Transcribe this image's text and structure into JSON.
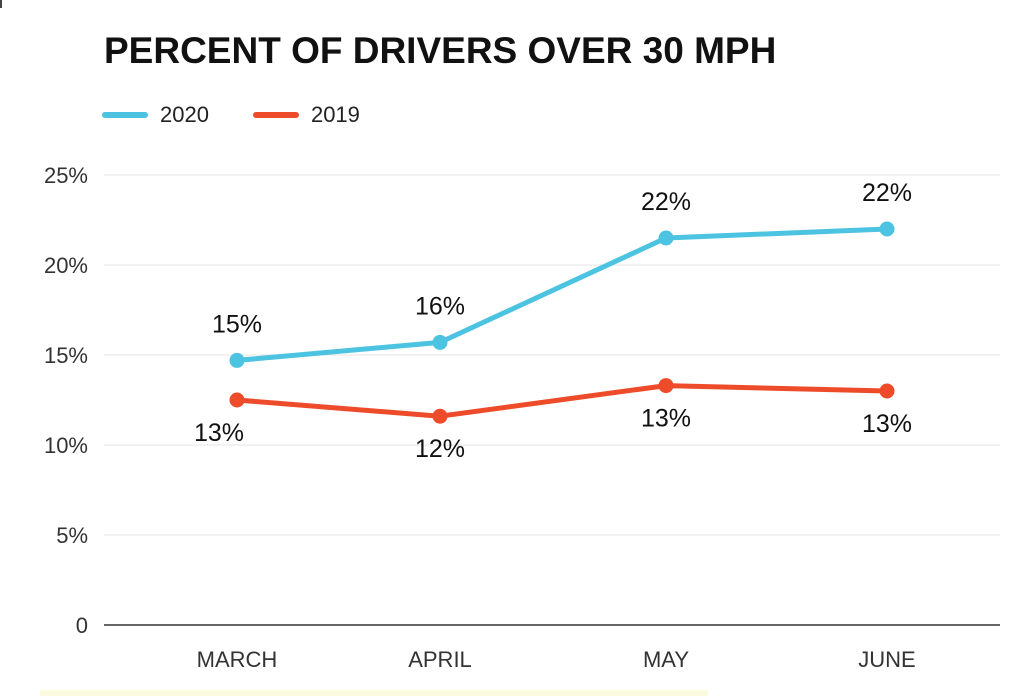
{
  "chart_data": {
    "type": "line",
    "title": "PERCENT OF DRIVERS OVER 30 MPH",
    "categories": [
      "MARCH",
      "APRIL",
      "MAY",
      "JUNE"
    ],
    "series": [
      {
        "name": "2020",
        "color": "#4cc3e0",
        "values": [
          14.7,
          15.7,
          21.5,
          22.0
        ],
        "labels": [
          "15%",
          "16%",
          "22%",
          "22%"
        ]
      },
      {
        "name": "2019",
        "color": "#ee4b2b",
        "values": [
          12.5,
          11.6,
          13.3,
          13.0
        ],
        "labels": [
          "13%",
          "12%",
          "13%",
          "13%"
        ]
      }
    ],
    "yticks": [
      "0",
      "5%",
      "10%",
      "15%",
      "20%",
      "25%"
    ],
    "ylim": [
      0,
      25
    ],
    "grid": true,
    "legend_position": "top-left"
  }
}
